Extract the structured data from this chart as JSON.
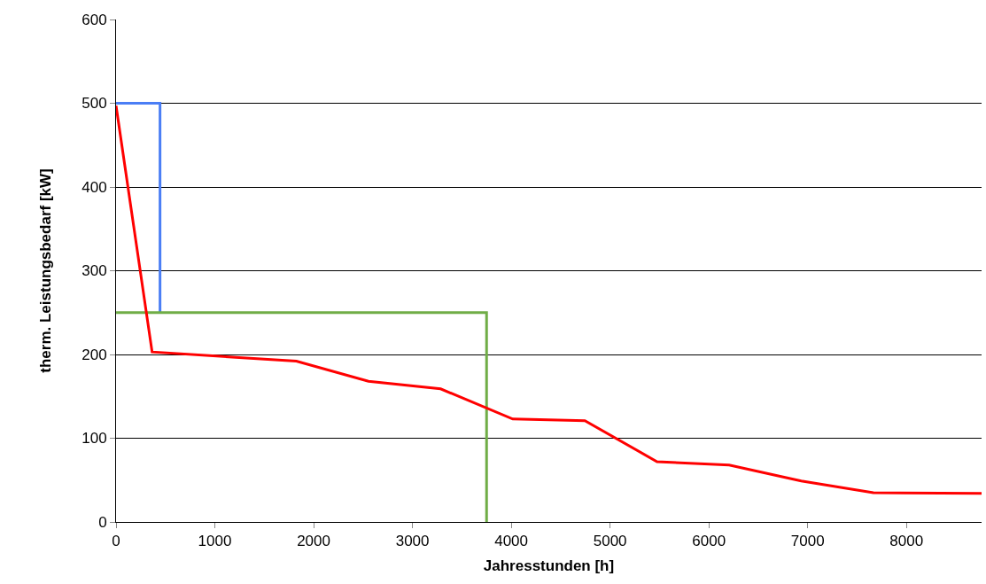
{
  "chart_data": {
    "type": "line",
    "xlabel": "Jahresstunden [h]",
    "ylabel": "therm. Leistungsbedarf [kW]",
    "series": [
      {
        "color": "#4a7ef5",
        "x": [
          0,
          445,
          445
        ],
        "values": [
          500,
          500,
          250
        ]
      },
      {
        "color": "#70ad47",
        "x": [
          0,
          3750,
          3750
        ],
        "values": [
          250,
          250,
          0
        ]
      },
      {
        "color": "#ff0000",
        "x": [
          0,
          365,
          1825,
          2555,
          3285,
          4015,
          4745,
          5475,
          6205,
          6935,
          7665,
          8760
        ],
        "values": [
          497,
          203,
          192,
          168,
          159,
          123,
          121,
          72,
          68,
          49,
          35,
          34
        ]
      }
    ],
    "xlim": [
      0,
      8760
    ],
    "xticks": [
      0,
      1000,
      2000,
      3000,
      4000,
      5000,
      6000,
      7000,
      8000
    ],
    "ylim": [
      0,
      600
    ],
    "yticks": [
      0,
      100,
      200,
      300,
      400,
      500,
      600
    ],
    "grid": "y",
    "marker": "none",
    "line_style": "solid"
  }
}
